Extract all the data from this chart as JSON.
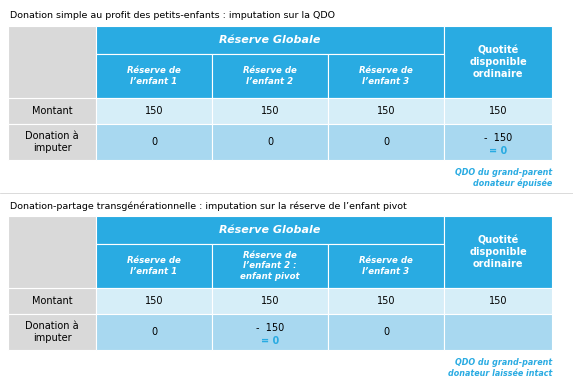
{
  "title1": "Donation simple au profit des petits-enfants : imputation sur la QDO",
  "title2": "Donation-partage transgénérationnelle : imputation sur la réserve de l’enfant pivot",
  "col_header_main": "Réserve Globale",
  "col_header_last": "Quotité\ndisponible\nordinaire",
  "table1_subheaders": [
    "Réserve de\nl’enfant 1",
    "Réserve de\nl’enfant 2",
    "Réserve de\nl’enfant 3"
  ],
  "table2_subheaders": [
    "Réserve de\nl’enfant 1",
    "Réserve de\nl’enfant 2 :\nenfant pivot",
    "Réserve de\nl’enfant 3"
  ],
  "row_labels": [
    "Montant",
    "Donation à\nimputer"
  ],
  "table1_data": [
    [
      "150",
      "150",
      "150",
      "150"
    ],
    [
      "0",
      "0",
      "0",
      "-  150\n= 0"
    ]
  ],
  "table2_data": [
    [
      "150",
      "150",
      "150",
      "150"
    ],
    [
      "0",
      "-  150\n= 0",
      "0",
      ""
    ]
  ],
  "note1": "QDO du grand-parent\ndonateur épuisée",
  "note2": "QDO du grand-parent\ndonateur laissée intact",
  "color_dark_blue": "#29ABE2",
  "color_light_blue": "#A8D8F0",
  "color_very_light_blue": "#D6EEF8",
  "color_light_gray": "#D9D9D9",
  "color_note": "#29ABE2",
  "color_zero": "#29ABE2",
  "bg_color": "#ffffff"
}
